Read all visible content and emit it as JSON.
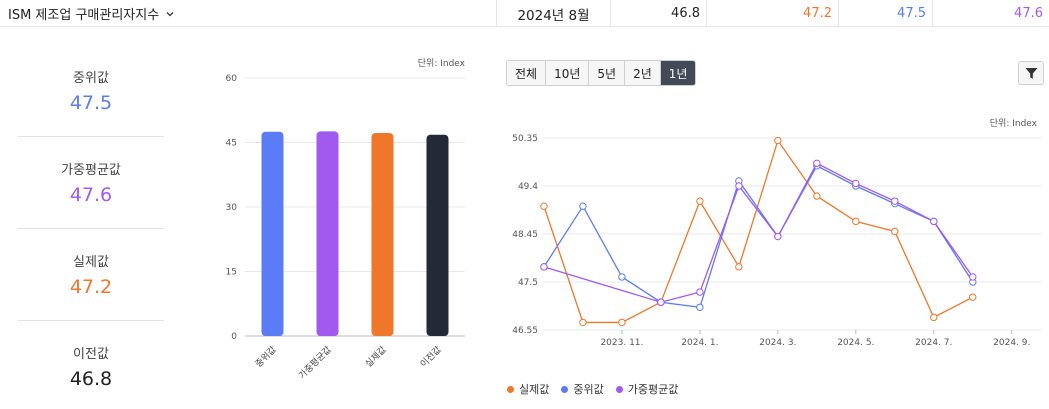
{
  "header": {
    "indicator": "ISM 제조업 구매관리자지수",
    "date": "2024년 8월",
    "previous": "46.8",
    "actual": "47.2",
    "median": "47.5",
    "weighted": "47.6"
  },
  "stats": [
    {
      "label": "중위값",
      "value": "47.5",
      "color": "#5b7cf7"
    },
    {
      "label": "가중평균값",
      "value": "47.6",
      "color": "#a259f0"
    },
    {
      "label": "실제값",
      "value": "47.2",
      "color": "#f0772a"
    },
    {
      "label": "이전값",
      "value": "46.8",
      "color": "#222222"
    }
  ],
  "periods": {
    "items": [
      "전체",
      "10년",
      "5년",
      "2년",
      "1년"
    ],
    "active": "1년"
  },
  "colors": {
    "median": "#5b7cf7",
    "weighted": "#a259f0",
    "actual": "#f0772a",
    "previous": "#232a36"
  },
  "chart_data": [
    {
      "type": "bar",
      "unit_label": "단위: Index",
      "categories": [
        "중위값",
        "가중평균값",
        "실제값",
        "이전값"
      ],
      "values": [
        47.5,
        47.6,
        47.2,
        46.8
      ],
      "colors": [
        "#5b7cf7",
        "#a259f0",
        "#f0772a",
        "#232a36"
      ],
      "ylim": [
        0,
        60
      ],
      "yticks": [
        "0",
        "15",
        "30",
        "45",
        "60"
      ],
      "grid": true
    },
    {
      "type": "line",
      "unit_label": "단위: Index",
      "x": [
        "2023-09",
        "2023-10",
        "2023-11",
        "2023-12",
        "2024-01",
        "2024-02",
        "2024-03",
        "2024-04",
        "2024-05",
        "2024-06",
        "2024-07",
        "2024-08",
        "2024-09"
      ],
      "xticks": [
        {
          "label": "2023. 11.",
          "index": 2
        },
        {
          "label": "2024. 1.",
          "index": 4
        },
        {
          "label": "2024. 3.",
          "index": 6
        },
        {
          "label": "2024. 5.",
          "index": 8
        },
        {
          "label": "2024. 7.",
          "index": 10
        },
        {
          "label": "2024. 9.",
          "index": 12
        }
      ],
      "ylim": [
        46.55,
        50.35
      ],
      "yticks": [
        "46.55",
        "47.5",
        "48.45",
        "49.4",
        "50.35"
      ],
      "grid": true,
      "legend": "bottom-left",
      "series": [
        {
          "name": "실제값",
          "color": "#f0772a",
          "values": [
            49.0,
            46.7,
            46.7,
            47.1,
            49.1,
            47.8,
            50.3,
            49.2,
            48.7,
            48.5,
            46.8,
            47.2,
            null
          ]
        },
        {
          "name": "중위값",
          "color": "#5b7cf7",
          "values": [
            47.8,
            49.0,
            47.6,
            47.1,
            47.0,
            49.5,
            48.4,
            49.8,
            49.4,
            49.05,
            48.7,
            47.5,
            null
          ]
        },
        {
          "name": "가중평균값",
          "color": "#a259f0",
          "values": [
            47.8,
            null,
            null,
            47.1,
            47.3,
            49.4,
            48.4,
            49.85,
            49.45,
            49.1,
            48.7,
            47.6,
            null
          ]
        }
      ]
    }
  ]
}
